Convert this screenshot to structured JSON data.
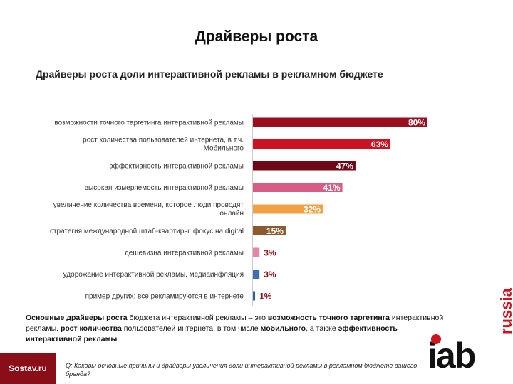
{
  "page": {
    "title": "Драйверы роста"
  },
  "chart_data": {
    "type": "bar",
    "orientation": "horizontal",
    "title": "Драйверы роста доли интерактивной рекламы в рекламном бюджете",
    "categories": [
      [
        "возможности точного таргетинга интерактивной рекламы"
      ],
      [
        "рост количества пользователей интернета, в т.ч.",
        "Мобильного"
      ],
      [
        "эффективность интерактивной рекламы"
      ],
      [
        "высокая измеряемость интерактивной рекламы"
      ],
      [
        "увеличение количества времени, которое люди проводят",
        "онлайн"
      ],
      [
        "стратегия международной штаб-квартиры: фокус на digital"
      ],
      [
        "дешевизна интерактивной рекламы"
      ],
      [
        "удорожание интерактивной рекламы, медиаинфляция"
      ],
      [
        "пример других: все рекламируются в интернете"
      ]
    ],
    "values": [
      80,
      63,
      47,
      41,
      32,
      15,
      3,
      3,
      1
    ],
    "value_labels": [
      "80%",
      "63%",
      "47%",
      "41%",
      "32%",
      "15%",
      "3%",
      "3%",
      "1%"
    ],
    "bar_colors": [
      "#9a0e1f",
      "#cc1324",
      "#6e0716",
      "#d75c86",
      "#f0a045",
      "#8c5a2e",
      "#e585a8",
      "#3d6fb7",
      "#2e5f9e"
    ],
    "label_colors": [
      "#ffffff",
      "#ffffff",
      "#ffffff",
      "#ffffff",
      "#ffffff",
      "#ffffff",
      "#8a0e18",
      "#8a0e18",
      "#8a0e18"
    ],
    "xlim": [
      0,
      80
    ],
    "unit": "%"
  },
  "summary": {
    "p1": "Основные драйверы роста",
    "p2": " бюджета интерактивной рекламы – это ",
    "p3": "возможность точного таргетинга",
    "p4": " интерактивной рекламы, ",
    "p5": "рост количества",
    "p6": " пользователей интернета, в том числе ",
    "p7": "мобильного",
    "p8": ", а также ",
    "p9": "эффективность интерактивной рекламы"
  },
  "footnote": "Q: Каковы основные причины и драйверы увеличения доли интерактивной рекламы в рекламном бюджете вашего бренда?",
  "logos": {
    "sostav": "Sostav.ru",
    "iab": "iab",
    "russia": "russia"
  }
}
